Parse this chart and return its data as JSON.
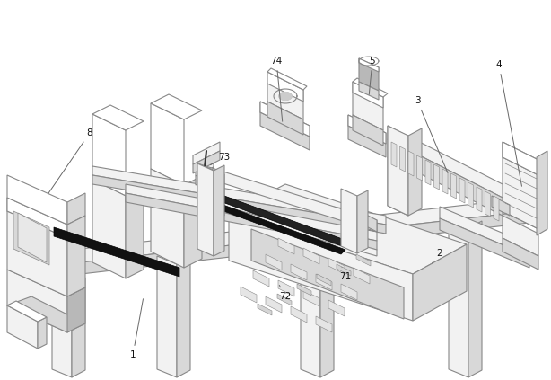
{
  "bg_color": "#ffffff",
  "line_color": "#888888",
  "fill_light": "#f2f2f2",
  "fill_mid": "#d8d8d8",
  "fill_dark": "#b8b8b8",
  "fill_black": "#111111",
  "fill_white": "#ffffff",
  "figsize": [
    6.14,
    4.23
  ],
  "dpi": 100
}
